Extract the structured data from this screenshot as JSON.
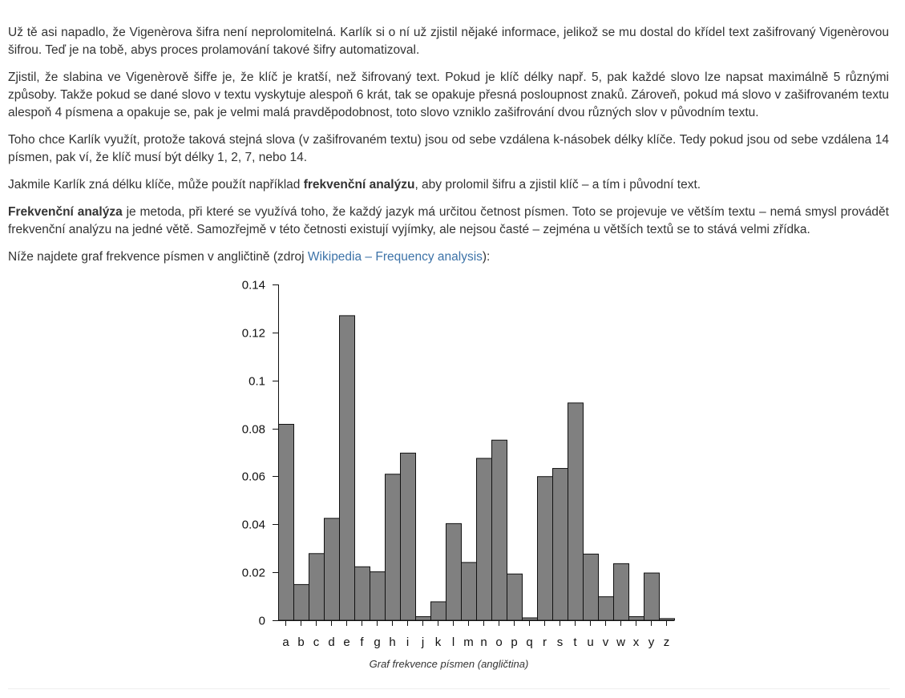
{
  "paragraphs": [
    {
      "text": "Už tě asi napadlo, že Vigenèrova šifra není neprolomitelná. Karlík si o ní už zjistil nějaké informace, jelikož se mu dostal do křídel text zašifrovaný Vigenèrovou šifrou. Teď je na tobě, abys proces prolamování takové šifry automatizoval."
    },
    {
      "text": "Zjistil, že slabina ve Vigenèrově šifře je, že klíč je kratší, než šifrovaný text. Pokud je klíč délky např. 5, pak každé slovo lze napsat maximálně 5 různými způsoby. Takže pokud se dané slovo v textu vyskytuje alespoň 6 krát, tak se opakuje přesná posloupnost znaků. Zároveň, pokud má slovo v zašifrovaném textu alespoň 4 písmena a opakuje se, pak je velmi malá pravděpodobnost, toto slovo vzniklo zašifrování dvou různých slov v původním textu."
    },
    {
      "text": "Toho chce Karlík využít, protože taková stejná slova (v zašifrovaném textu) jsou od sebe vzdálena k-násobek délky klíče. Tedy pokud jsou od sebe vzdálena 14 písmen, pak ví, že klíč musí být délky 1, 2, 7, nebo 14."
    }
  ],
  "p4": {
    "before": "Jakmile Karlík zná délku klíče, může použít například ",
    "bold": "frekvenční analýzu",
    "after": ", aby prolomil šifru a zjistil klíč – a tím i původní text."
  },
  "p5": {
    "bold": "Frekvenční analýza",
    "after": " je metoda, při které se využívá toho, že každý jazyk má určitou četnost písmen. Toto se projevuje ve větším textu – nemá smysl provádět frekvenční analýzu na jedné větě. Samozřejmě v této četnosti existují vyjímky, ale nejsou časté – zejména u větších textů se to stává velmi zřídka."
  },
  "p6": {
    "before": "Níže najdete graf frekvence písmen v angličtině (zdroj ",
    "link": "Wikipedia – Frequency analysis",
    "after": "):"
  },
  "caption": "Graf frekvence písmen (angličtina)",
  "colors": {
    "bar_fill": "#808080",
    "bar_stroke": "#111111",
    "link": "#3d73a8"
  },
  "chart_data": {
    "type": "bar",
    "title": "",
    "xlabel": "",
    "ylabel": "",
    "categories": [
      "a",
      "b",
      "c",
      "d",
      "e",
      "f",
      "g",
      "h",
      "i",
      "j",
      "k",
      "l",
      "m",
      "n",
      "o",
      "p",
      "q",
      "r",
      "s",
      "t",
      "u",
      "v",
      "w",
      "x",
      "y",
      "z"
    ],
    "values": [
      0.0817,
      0.0149,
      0.0278,
      0.0425,
      0.127,
      0.0223,
      0.0202,
      0.0609,
      0.0697,
      0.0015,
      0.0077,
      0.0403,
      0.0241,
      0.0675,
      0.0751,
      0.0193,
      0.001,
      0.0599,
      0.0633,
      0.0906,
      0.0276,
      0.0098,
      0.0236,
      0.0015,
      0.0197,
      0.0007
    ],
    "ylim": [
      0,
      0.14
    ],
    "yticks": [
      0,
      0.02,
      0.04,
      0.06,
      0.08,
      0.1,
      0.12,
      0.14
    ],
    "ytick_labels": [
      "0",
      "0.02",
      "0.04",
      "0.06",
      "0.08",
      "0.1",
      "0.12",
      "0.14"
    ],
    "grid": false,
    "legend": "none"
  }
}
